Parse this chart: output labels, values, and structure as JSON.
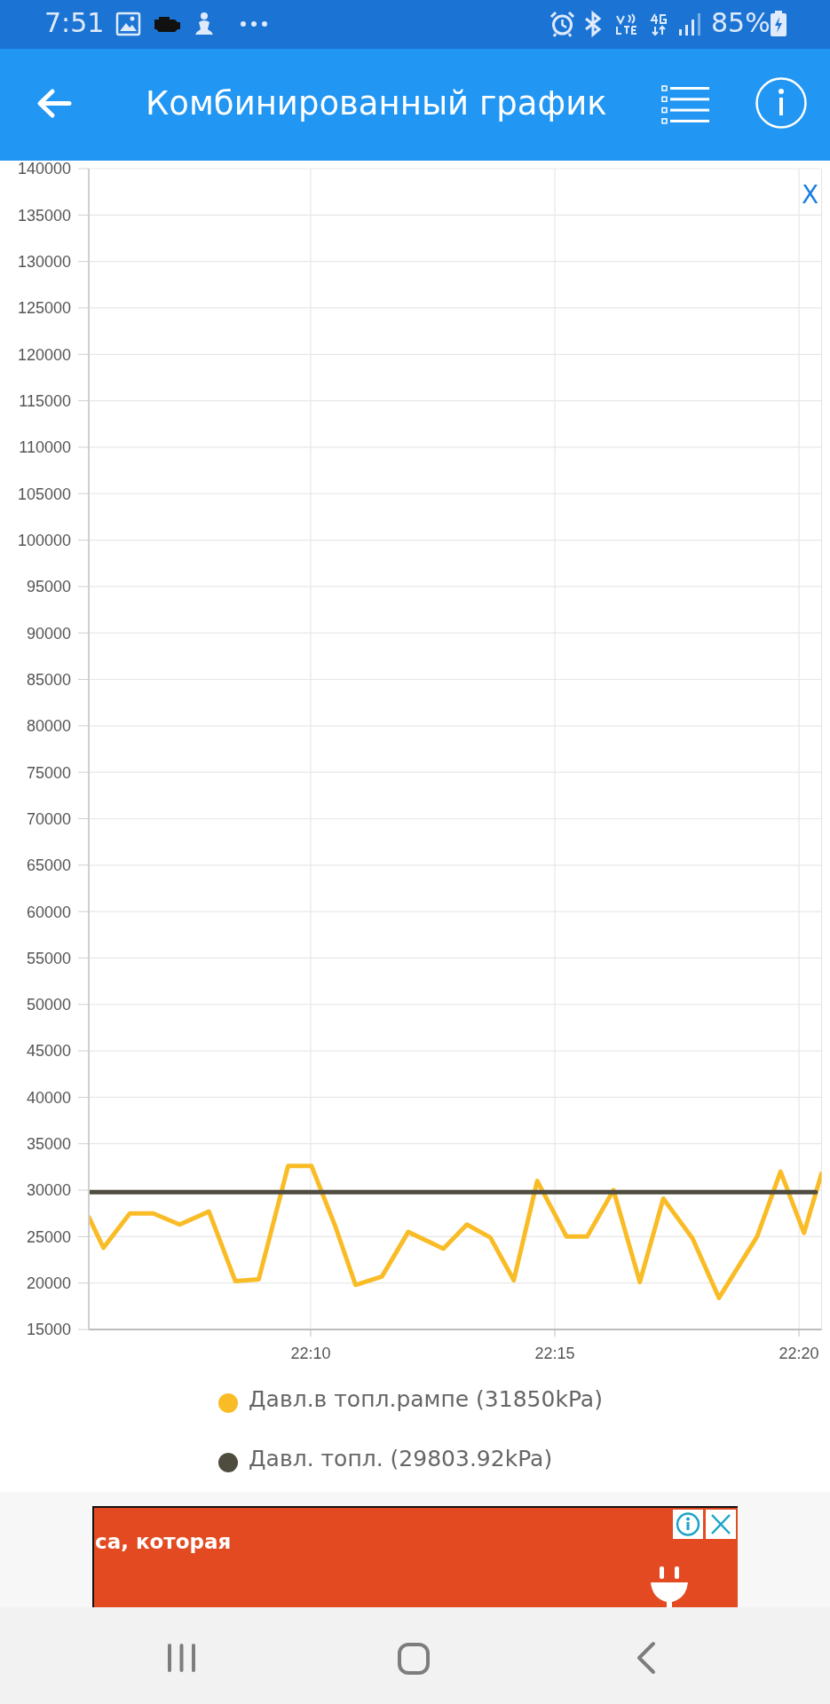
{
  "chart_data": {
    "type": "line",
    "title": "Комбинированный график",
    "x": [
      22.091,
      22.096,
      22.105,
      22.113,
      22.122,
      22.132,
      22.141,
      22.149,
      22.159,
      22.167,
      22.175,
      22.182,
      22.191,
      22.2,
      22.212,
      22.22,
      22.228,
      22.236,
      22.244,
      22.254,
      22.261,
      22.27,
      22.279,
      22.287,
      22.297,
      22.306,
      22.319,
      22.327,
      22.335,
      22.341
    ],
    "series": [
      {
        "name": "Давл.в топл.рампе (31850kPa)",
        "color": "#f9bc26",
        "values": [
          27100,
          23800,
          27500,
          27500,
          26300,
          27700,
          20200,
          20400,
          32600,
          32600,
          26200,
          19800,
          20700,
          25500,
          23700,
          26300,
          24900,
          20300,
          31000,
          25000,
          25000,
          30000,
          20100,
          29100,
          24800,
          18400,
          25000,
          32000,
          25400,
          31800
        ]
      },
      {
        "name": "Давл. топл. (29803.92kPa)",
        "color": "#4e4b3f",
        "x": [
          22.091,
          22.339
        ],
        "values": [
          29800,
          29800
        ]
      }
    ],
    "xlim": [
      22.091,
      22.341
    ],
    "xticks": [
      {
        "value": 22.1667,
        "label": "22:10"
      },
      {
        "value": 22.25,
        "label": "22:15"
      },
      {
        "value": 22.3333,
        "label": "22:20"
      }
    ],
    "ylim": [
      15000,
      140000
    ],
    "yticks": [
      15000,
      20000,
      25000,
      30000,
      35000,
      40000,
      45000,
      50000,
      55000,
      60000,
      65000,
      70000,
      75000,
      80000,
      85000,
      90000,
      95000,
      100000,
      105000,
      110000,
      115000,
      120000,
      125000,
      130000,
      135000,
      140000
    ],
    "grid": true,
    "legend": "bottom",
    "marker": "none",
    "line_style": "solid",
    "annotations": [
      "7:51",
      "85%",
      "X",
      "са, которая"
    ]
  }
}
